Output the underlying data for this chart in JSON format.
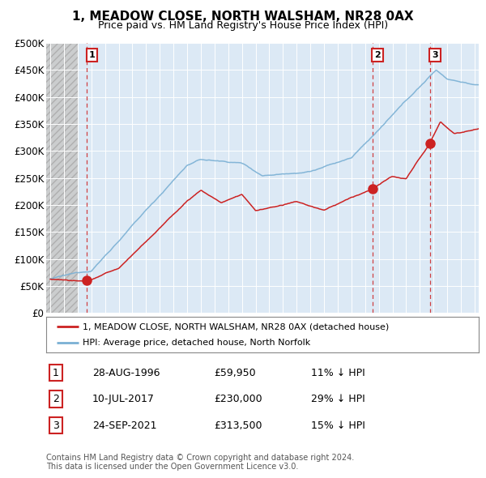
{
  "title": "1, MEADOW CLOSE, NORTH WALSHAM, NR28 0AX",
  "subtitle": "Price paid vs. HM Land Registry's House Price Index (HPI)",
  "sale_dates_num": [
    1996.67,
    2017.53,
    2021.73
  ],
  "sale_prices": [
    59950,
    230000,
    313500
  ],
  "sale_labels": [
    "1",
    "2",
    "3"
  ],
  "sale_info": [
    "28-AUG-1996",
    "£59,950",
    "11% ↓ HPI",
    "10-JUL-2017",
    "£230,000",
    "29% ↓ HPI",
    "24-SEP-2021",
    "£313,500",
    "15% ↓ HPI"
  ],
  "line_color_sales": "#cc2222",
  "line_color_hpi": "#7ab0d4",
  "marker_color": "#cc2222",
  "bg_plot": "#dce9f5",
  "grid_color": "#ffffff",
  "ylim": [
    0,
    500000
  ],
  "yticks": [
    0,
    50000,
    100000,
    150000,
    200000,
    250000,
    300000,
    350000,
    400000,
    450000,
    500000
  ],
  "ytick_labels": [
    "£0",
    "£50K",
    "£100K",
    "£150K",
    "£200K",
    "£250K",
    "£300K",
    "£350K",
    "£400K",
    "£450K",
    "£500K"
  ],
  "xlim_start": 1993.7,
  "xlim_end": 2025.3,
  "legend_line1": "1, MEADOW CLOSE, NORTH WALSHAM, NR28 0AX (detached house)",
  "legend_line2": "HPI: Average price, detached house, North Norfolk",
  "footer1": "Contains HM Land Registry data © Crown copyright and database right 2024.",
  "footer2": "This data is licensed under the Open Government Licence v3.0."
}
